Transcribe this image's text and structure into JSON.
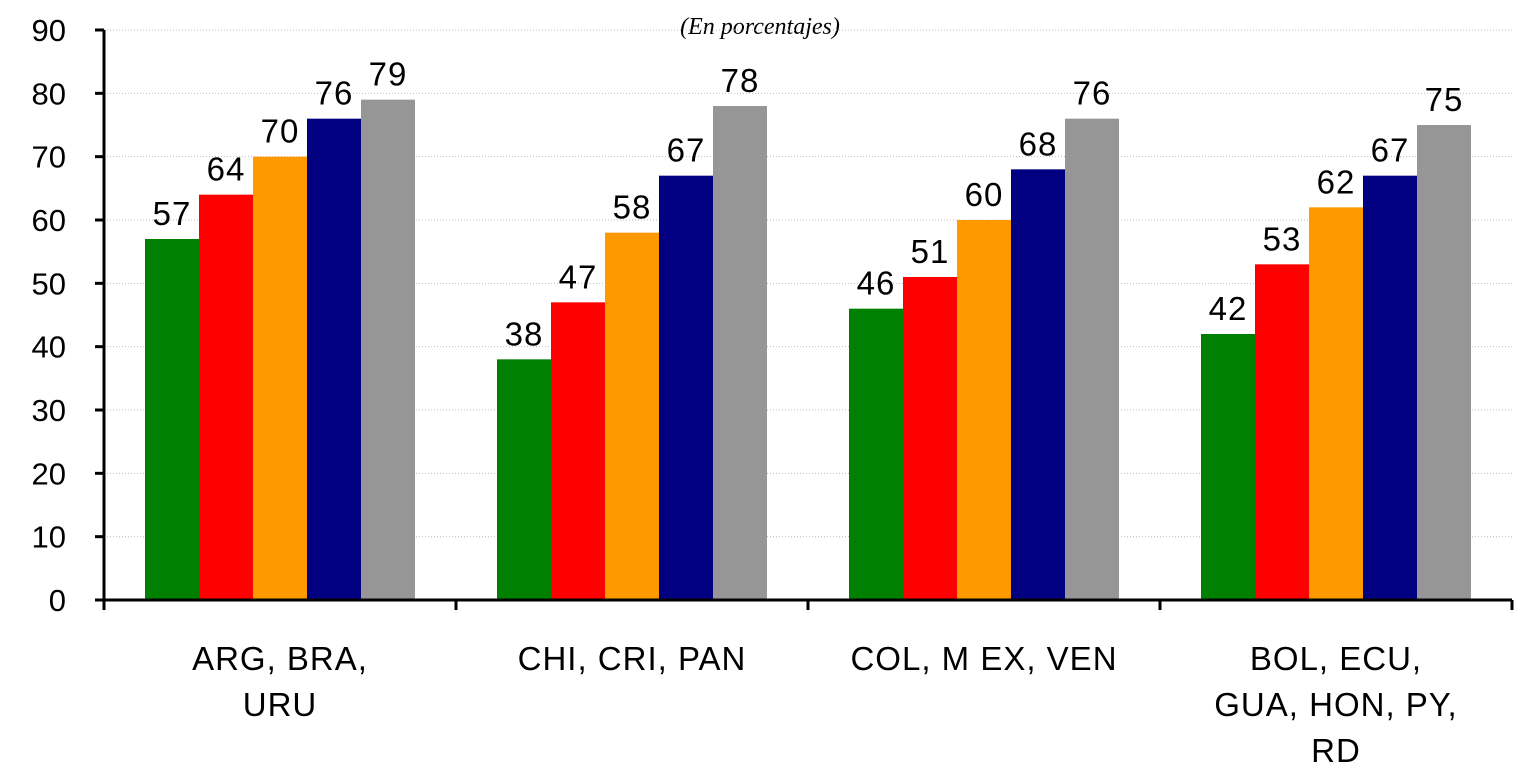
{
  "chart_data": {
    "type": "bar",
    "subtitle": "(En porcentajes)",
    "title": "",
    "xlabel": "",
    "ylabel": "",
    "ylim": [
      0,
      90
    ],
    "yticks": [
      0,
      10,
      20,
      30,
      40,
      50,
      60,
      70,
      80,
      90
    ],
    "grid": "horizontal-dotted",
    "legend": "none",
    "categories": [
      [
        "ARG, BRA,",
        "URU"
      ],
      [
        "CHI, CRI, PAN"
      ],
      [
        "COL, M EX, VEN"
      ],
      [
        "BOL, ECU,",
        "GUA, HON, PY,",
        "RD"
      ]
    ],
    "series": [
      {
        "color": "#008000",
        "values": [
          57,
          38,
          46,
          42
        ]
      },
      {
        "color": "#ff0000",
        "values": [
          64,
          47,
          51,
          53
        ]
      },
      {
        "color": "#ff9900",
        "values": [
          70,
          58,
          60,
          62
        ]
      },
      {
        "color": "#000080",
        "values": [
          76,
          67,
          68,
          67
        ]
      },
      {
        "color": "#969696",
        "values": [
          79,
          78,
          76,
          75
        ]
      }
    ],
    "data_labels": [
      [
        "57",
        "38",
        "46",
        "42"
      ],
      [
        "64",
        "47",
        "51",
        "53"
      ],
      [
        "70",
        "58",
        "60",
        "62"
      ],
      [
        "76",
        "67",
        "68",
        "67"
      ],
      [
        "79",
        "78",
        "76",
        "75"
      ]
    ]
  }
}
